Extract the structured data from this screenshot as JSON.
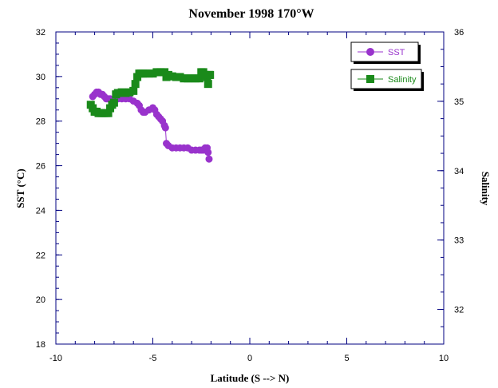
{
  "chart_data": {
    "type": "line",
    "title": "November 1998 170°W",
    "xlabel": "Latitude (S --> N)",
    "ylabel": "SST (°C)",
    "y2label": "Salinity",
    "xlim": [
      -10,
      10
    ],
    "ylim": [
      18,
      32
    ],
    "y2lim": [
      31.5,
      36
    ],
    "xticks": [
      -10,
      -5,
      0,
      5,
      10
    ],
    "yticks": [
      18,
      20,
      22,
      24,
      26,
      28,
      30,
      32
    ],
    "y2ticks": [
      32,
      33,
      34,
      35,
      36
    ],
    "grid": false,
    "legend_position": "top-right",
    "colors": {
      "sst": "#9933cc",
      "salinity": "#1a8a1a",
      "axis": "#000080"
    },
    "series": [
      {
        "name": "SST",
        "axis": "left",
        "marker": "circle",
        "x": [
          -8.1,
          -8.0,
          -7.9,
          -7.8,
          -7.7,
          -7.6,
          -7.5,
          -7.4,
          -7.3,
          -7.2,
          -7.0,
          -6.8,
          -6.6,
          -6.4,
          -6.2,
          -6.0,
          -5.8,
          -5.7,
          -5.6,
          -5.5,
          -5.4,
          -5.2,
          -5.0,
          -4.9,
          -4.8,
          -4.7,
          -4.6,
          -4.5,
          -4.4,
          -4.35,
          -4.3,
          -4.2,
          -4.0,
          -3.8,
          -3.6,
          -3.4,
          -3.2,
          -3.0,
          -2.8,
          -2.6,
          -2.5,
          -2.4,
          -2.3,
          -2.2,
          -2.15,
          -2.1
        ],
        "values": [
          29.1,
          29.2,
          29.3,
          29.3,
          29.2,
          29.2,
          29.1,
          29.0,
          29.0,
          29.0,
          29.0,
          29.0,
          29.0,
          29.0,
          29.0,
          28.9,
          28.8,
          28.7,
          28.5,
          28.4,
          28.4,
          28.5,
          28.6,
          28.5,
          28.3,
          28.2,
          28.1,
          28.0,
          27.8,
          27.7,
          27.0,
          26.9,
          26.8,
          26.8,
          26.8,
          26.8,
          26.8,
          26.7,
          26.7,
          26.7,
          26.7,
          26.7,
          26.8,
          26.8,
          26.6,
          26.3
        ]
      },
      {
        "name": "Salinity",
        "axis": "right",
        "marker": "square",
        "x": [
          -8.2,
          -8.1,
          -8.0,
          -7.9,
          -7.8,
          -7.7,
          -7.6,
          -7.5,
          -7.4,
          -7.3,
          -7.2,
          -7.1,
          -7.0,
          -6.9,
          -6.8,
          -6.6,
          -6.4,
          -6.2,
          -6.0,
          -5.9,
          -5.8,
          -5.7,
          -5.6,
          -5.5,
          -5.4,
          -5.2,
          -5.0,
          -4.8,
          -4.6,
          -4.4,
          -4.3,
          -4.2,
          -4.0,
          -3.8,
          -3.6,
          -3.4,
          -3.2,
          -3.0,
          -2.8,
          -2.6,
          -2.5,
          -2.4,
          -2.3,
          -2.2,
          -2.15,
          -2.1,
          -2.05
        ],
        "values": [
          34.95,
          34.9,
          34.85,
          34.85,
          34.83,
          34.83,
          34.83,
          34.83,
          34.83,
          34.83,
          34.9,
          34.95,
          34.98,
          35.1,
          35.12,
          35.13,
          35.12,
          35.13,
          35.15,
          35.25,
          35.35,
          35.4,
          35.4,
          35.4,
          35.4,
          35.4,
          35.4,
          35.42,
          35.42,
          35.42,
          35.35,
          35.38,
          35.36,
          35.35,
          35.35,
          35.33,
          35.33,
          35.33,
          35.33,
          35.33,
          35.42,
          35.42,
          35.38,
          35.35,
          35.25,
          35.38,
          35.38
        ]
      }
    ]
  }
}
